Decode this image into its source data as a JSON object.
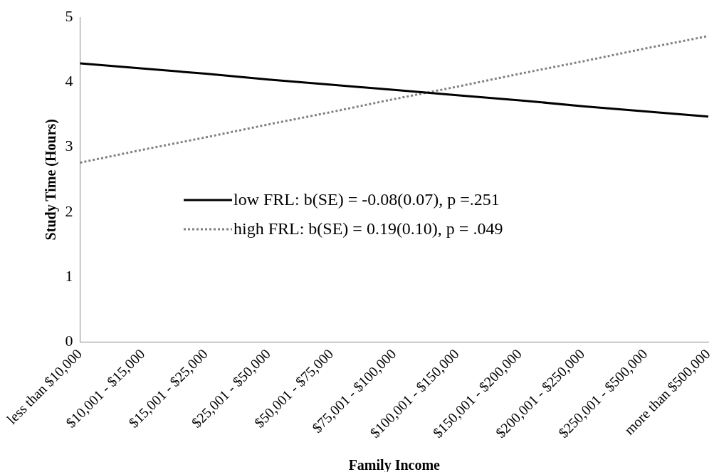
{
  "chart_data": {
    "type": "line",
    "xlabel": "Family Income",
    "ylabel": "Study Time (Hours)",
    "categories": [
      "less than $10,000",
      "$10,001 - $15,000",
      "$15,001 - $25,000",
      "$25,001 - $50,000",
      "$50,001 - $75,000",
      "$75,001 - $100,000",
      "$100,001 - $150,000",
      "$150,001 - $200,000",
      "$200,001 - $250,000",
      "$250,001 - $500,000",
      "more than $500,000"
    ],
    "series": [
      {
        "name": "low FRL:  b(SE) = -0.08(0.07), p =.251",
        "color": "#000000",
        "line_style": "solid",
        "values": [
          4.29,
          4.21,
          4.13,
          4.04,
          3.96,
          3.88,
          3.8,
          3.72,
          3.63,
          3.55,
          3.47
        ]
      },
      {
        "name": "high FRL:  b(SE) = 0.19(0.10), p = .049",
        "color": "#808080",
        "line_style": "dotted",
        "values": [
          2.76,
          2.96,
          3.15,
          3.35,
          3.54,
          3.74,
          3.93,
          4.13,
          4.32,
          4.52,
          4.71
        ]
      }
    ],
    "ylim": [
      0,
      5
    ],
    "yticks": [
      0,
      1,
      2,
      3,
      4,
      5
    ],
    "grid": false,
    "legend": "bottom left",
    "marker": "none"
  }
}
